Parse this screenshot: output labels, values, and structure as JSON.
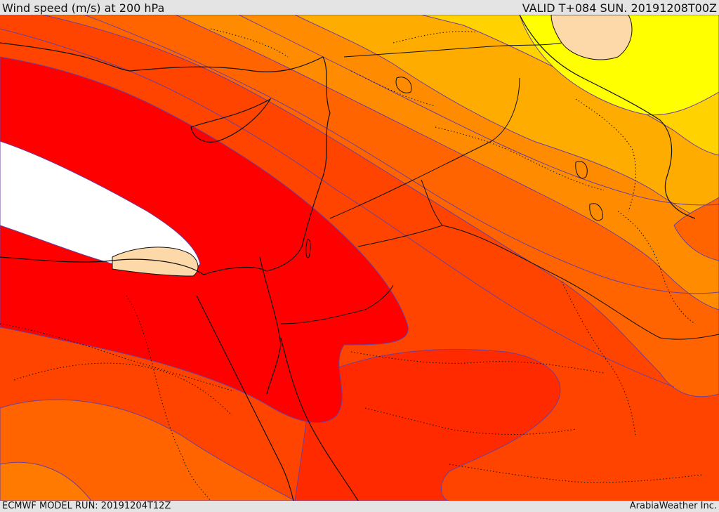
{
  "header": {
    "title": "Wind speed (m/s) at 200 hPa",
    "valid_time": "VALID T+084 SUN. 20191208T00Z"
  },
  "footer": {
    "model_run": "ECMWF MODEL RUN: 20191204T12Z",
    "credit": "ArabiaWeather Inc."
  },
  "map": {
    "variable": "wind speed",
    "level": "200 hPa",
    "units": "m/s",
    "shading_colors": [
      "#ffffff",
      "#ff0000",
      "#ff2a00",
      "#ff4400",
      "#ff6400",
      "#ff8c00",
      "#ffac00",
      "#ffd200",
      "#ffff00",
      "#fdd9a9"
    ],
    "contour_color": "#6a3fa0",
    "coastline_color": "#111111",
    "border_style": "dotted"
  }
}
